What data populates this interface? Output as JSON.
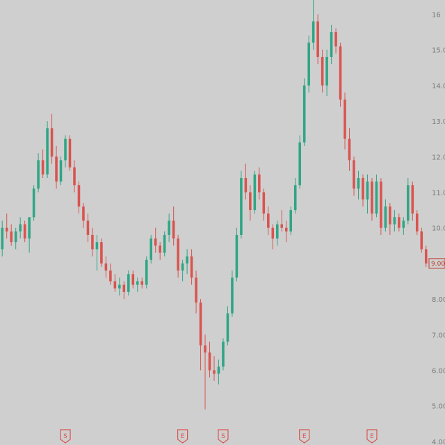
{
  "chart_data": {
    "type": "candlestick",
    "title": "",
    "xlabel": "",
    "ylabel": "",
    "ylim": [
      3.9,
      16.4
    ],
    "y_ticks": [
      4,
      5,
      6,
      7,
      8,
      10,
      11,
      12,
      13,
      14,
      15,
      16
    ],
    "y_tick_labels": [
      "4.00",
      "5.00",
      "6.00",
      "7.00",
      "8.00",
      "10.00",
      "11.00",
      "12.00",
      "13.00",
      "14.00",
      "15.00",
      "16"
    ],
    "last_price": 9.0,
    "last_price_label": "9.00",
    "colors": {
      "up": "#2fa584",
      "down": "#d9534f",
      "background": "#cfcfcf",
      "axis_text": "#7a7a7a"
    },
    "grid": false,
    "legend": "none",
    "events": [
      {
        "index": 14,
        "label": "S"
      },
      {
        "index": 40,
        "label": "E"
      },
      {
        "index": 49,
        "label": "S"
      },
      {
        "index": 67,
        "label": "E"
      },
      {
        "index": 82,
        "label": "E"
      }
    ],
    "candles": [
      [
        9.4,
        10.2,
        9.2,
        10.0
      ],
      [
        10.0,
        10.4,
        9.7,
        9.9
      ],
      [
        9.9,
        10.1,
        9.5,
        9.6
      ],
      [
        9.6,
        10.0,
        9.4,
        9.9
      ],
      [
        9.9,
        10.3,
        9.7,
        10.1
      ],
      [
        10.1,
        10.2,
        9.6,
        9.7
      ],
      [
        9.7,
        10.3,
        9.3,
        10.3
      ],
      [
        10.3,
        11.2,
        10.2,
        11.1
      ],
      [
        11.1,
        12.1,
        11.0,
        11.9
      ],
      [
        11.9,
        12.2,
        11.4,
        11.5
      ],
      [
        11.5,
        13.0,
        11.4,
        12.8
      ],
      [
        12.8,
        13.2,
        11.8,
        12.0
      ],
      [
        12.0,
        12.3,
        11.1,
        11.3
      ],
      [
        11.3,
        12.0,
        11.2,
        11.9
      ],
      [
        11.9,
        12.6,
        11.7,
        12.5
      ],
      [
        12.5,
        12.6,
        11.6,
        11.7
      ],
      [
        11.7,
        11.9,
        11.0,
        11.2
      ],
      [
        11.2,
        11.3,
        10.4,
        10.6
      ],
      [
        10.6,
        10.7,
        10.0,
        10.2
      ],
      [
        10.2,
        10.4,
        9.6,
        9.8
      ],
      [
        9.8,
        10.0,
        9.2,
        9.4
      ],
      [
        9.4,
        9.8,
        8.8,
        9.6
      ],
      [
        9.6,
        9.7,
        8.9,
        9.0
      ],
      [
        9.0,
        9.2,
        8.6,
        8.8
      ],
      [
        8.8,
        9.0,
        8.4,
        8.5
      ],
      [
        8.5,
        8.7,
        8.2,
        8.3
      ],
      [
        8.3,
        8.6,
        8.1,
        8.4
      ],
      [
        8.4,
        8.5,
        8.0,
        8.2
      ],
      [
        8.2,
        8.8,
        8.1,
        8.7
      ],
      [
        8.7,
        8.8,
        8.3,
        8.4
      ],
      [
        8.4,
        8.6,
        8.2,
        8.5
      ],
      [
        8.5,
        8.6,
        8.3,
        8.4
      ],
      [
        8.4,
        9.2,
        8.3,
        9.1
      ],
      [
        9.1,
        9.8,
        9.0,
        9.7
      ],
      [
        9.7,
        10.0,
        9.3,
        9.5
      ],
      [
        9.5,
        9.6,
        9.1,
        9.3
      ],
      [
        9.3,
        9.9,
        9.2,
        9.8
      ],
      [
        9.8,
        10.4,
        9.6,
        10.2
      ],
      [
        10.2,
        10.6,
        9.5,
        9.7
      ],
      [
        9.7,
        9.8,
        8.6,
        8.8
      ],
      [
        8.8,
        9.1,
        8.5,
        9.0
      ],
      [
        9.0,
        9.4,
        8.7,
        9.2
      ],
      [
        9.2,
        9.4,
        8.4,
        8.6
      ],
      [
        8.6,
        8.8,
        7.6,
        7.9
      ],
      [
        7.9,
        8.0,
        6.0,
        6.7
      ],
      [
        6.7,
        7.0,
        4.9,
        6.5
      ],
      [
        6.5,
        6.8,
        5.8,
        6.0
      ],
      [
        6.0,
        6.4,
        5.7,
        5.9
      ],
      [
        5.9,
        6.3,
        5.6,
        6.1
      ],
      [
        6.1,
        6.9,
        6.0,
        6.8
      ],
      [
        6.8,
        7.8,
        6.7,
        7.6
      ],
      [
        7.6,
        8.8,
        7.5,
        8.6
      ],
      [
        8.6,
        10.0,
        8.5,
        9.8
      ],
      [
        9.8,
        11.6,
        9.7,
        11.4
      ],
      [
        11.4,
        11.8,
        10.8,
        11.0
      ],
      [
        11.0,
        11.2,
        10.2,
        10.5
      ],
      [
        10.5,
        11.6,
        10.4,
        11.5
      ],
      [
        11.5,
        11.7,
        10.8,
        11.0
      ],
      [
        11.0,
        11.1,
        10.2,
        10.4
      ],
      [
        10.4,
        10.6,
        9.8,
        10.0
      ],
      [
        10.0,
        10.1,
        9.4,
        9.7
      ],
      [
        9.7,
        10.2,
        9.5,
        10.1
      ],
      [
        10.1,
        10.5,
        9.9,
        10.0
      ],
      [
        10.0,
        10.2,
        9.6,
        9.9
      ],
      [
        9.9,
        10.6,
        9.8,
        10.5
      ],
      [
        10.5,
        11.4,
        10.4,
        11.2
      ],
      [
        11.2,
        12.6,
        11.1,
        12.4
      ],
      [
        12.4,
        14.2,
        12.3,
        14.0
      ],
      [
        14.0,
        15.4,
        13.8,
        15.2
      ],
      [
        15.2,
        16.4,
        15.0,
        15.8
      ],
      [
        15.8,
        16.0,
        14.6,
        14.8
      ],
      [
        14.8,
        15.0,
        13.8,
        14.0
      ],
      [
        14.0,
        15.0,
        13.7,
        14.8
      ],
      [
        14.8,
        15.7,
        14.6,
        15.5
      ],
      [
        15.5,
        15.6,
        14.9,
        15.1
      ],
      [
        15.1,
        15.2,
        13.4,
        13.6
      ],
      [
        13.6,
        13.8,
        12.2,
        12.5
      ],
      [
        12.5,
        12.8,
        11.6,
        11.9
      ],
      [
        11.9,
        12.0,
        10.9,
        11.1
      ],
      [
        11.1,
        11.6,
        10.8,
        11.4
      ],
      [
        11.4,
        11.5,
        10.6,
        10.8
      ],
      [
        10.8,
        11.5,
        10.4,
        11.3
      ],
      [
        11.3,
        11.4,
        10.2,
        10.4
      ],
      [
        10.4,
        11.5,
        10.3,
        11.3
      ],
      [
        11.3,
        11.4,
        9.8,
        10.0
      ],
      [
        10.0,
        10.8,
        9.9,
        10.6
      ],
      [
        10.6,
        10.7,
        9.8,
        10.1
      ],
      [
        10.1,
        10.5,
        9.9,
        10.3
      ],
      [
        10.3,
        10.4,
        9.9,
        10.0
      ],
      [
        10.0,
        10.3,
        9.8,
        10.2
      ],
      [
        10.2,
        11.4,
        10.1,
        11.2
      ],
      [
        11.2,
        11.3,
        10.2,
        10.4
      ],
      [
        10.4,
        10.5,
        9.8,
        9.9
      ],
      [
        9.9,
        10.0,
        9.3,
        9.4
      ],
      [
        9.4,
        9.5,
        8.9,
        9.0
      ]
    ]
  }
}
